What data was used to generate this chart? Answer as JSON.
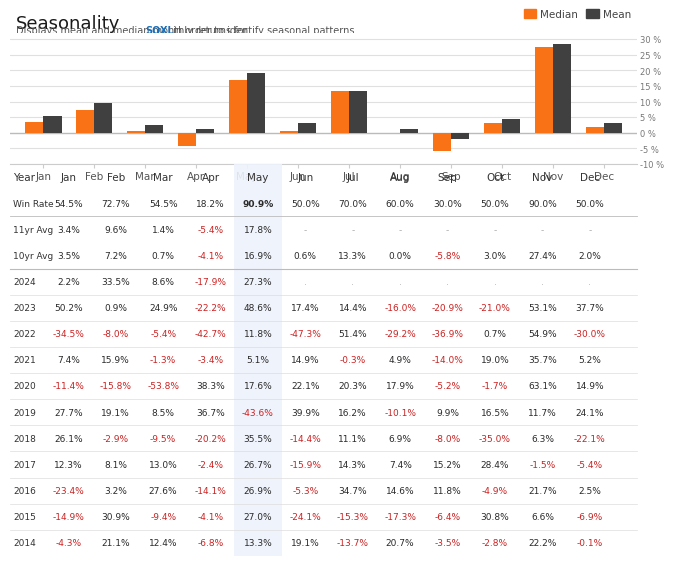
{
  "title": "Seasonality",
  "subtitle_plain": "Displays mean and median monthly returns for ",
  "subtitle_ticker": "SOXL",
  "subtitle_end": " in order to identify seasonal patterns.",
  "months": [
    "Jan",
    "Feb",
    "Mar",
    "Apr",
    "May",
    "Jun",
    "Jul",
    "Aug",
    "Sep",
    "Oct",
    "Nov",
    "Dec"
  ],
  "median": [
    3.5,
    7.2,
    0.7,
    -4.1,
    16.9,
    0.6,
    13.3,
    0.0,
    -5.8,
    3.0,
    27.4,
    2.0
  ],
  "mean": [
    5.5,
    9.6,
    2.5,
    1.2,
    19.0,
    3.0,
    13.5,
    1.2,
    -2.0,
    4.5,
    28.5,
    3.0
  ],
  "median_color": "#f97316",
  "mean_color": "#404040",
  "background_color": "#ffffff",
  "grid_color": "#e0e0e0",
  "ylim": [
    -10,
    32
  ],
  "yticks": [
    -10,
    -5,
    0,
    5,
    10,
    15,
    20,
    25,
    30
  ],
  "table_row_labels": [
    "Year",
    "Win Rate",
    "11yr Avg",
    "10yr Avg",
    "2024",
    "2023",
    "2022",
    "2021",
    "2020",
    "2019",
    "2018",
    "2017",
    "2016",
    "2015",
    "2014"
  ],
  "table_col_labels": [
    "Jan",
    "Feb",
    "Mar",
    "Apr",
    "May",
    "Jun",
    "Jul",
    "Aug",
    "Sep",
    "Oct",
    "Nov",
    "Dec"
  ],
  "table_data": [
    [
      "54.5%",
      "72.7%",
      "54.5%",
      "18.2%",
      "90.9%",
      "50.0%",
      "70.0%",
      "60.0%",
      "30.0%",
      "50.0%",
      "90.0%",
      "50.0%"
    ],
    [
      "3.4%",
      "9.6%",
      "1.4%",
      "-5.4%",
      "17.8%",
      "-",
      "-",
      "-",
      "-",
      "-",
      "-",
      "-"
    ],
    [
      "3.5%",
      "7.2%",
      "0.7%",
      "-4.1%",
      "16.9%",
      "0.6%",
      "13.3%",
      "0.0%",
      "-5.8%",
      "3.0%",
      "27.4%",
      "2.0%"
    ],
    [
      "2.2%",
      "33.5%",
      "8.6%",
      "-17.9%",
      "27.3%",
      ".",
      ".",
      ".",
      ".",
      ".",
      ".",
      "."
    ],
    [
      "50.2%",
      "0.9%",
      "24.9%",
      "-22.2%",
      "48.6%",
      "17.4%",
      "14.4%",
      "-16.0%",
      "-20.9%",
      "-21.0%",
      "53.1%",
      "37.7%"
    ],
    [
      "-34.5%",
      "-8.0%",
      "-5.4%",
      "-42.7%",
      "11.8%",
      "-47.3%",
      "51.4%",
      "-29.2%",
      "-36.9%",
      "0.7%",
      "54.9%",
      "-30.0%"
    ],
    [
      "7.4%",
      "15.9%",
      "-1.3%",
      "-3.4%",
      "5.1%",
      "14.9%",
      "-0.3%",
      "4.9%",
      "-14.0%",
      "19.0%",
      "35.7%",
      "5.2%"
    ],
    [
      "-11.4%",
      "-15.8%",
      "-53.8%",
      "38.3%",
      "17.6%",
      "22.1%",
      "20.3%",
      "17.9%",
      "-5.2%",
      "-1.7%",
      "63.1%",
      "14.9%"
    ],
    [
      "27.7%",
      "19.1%",
      "8.5%",
      "36.7%",
      "-43.6%",
      "39.9%",
      "16.2%",
      "-10.1%",
      "9.9%",
      "16.5%",
      "11.7%",
      "24.1%"
    ],
    [
      "26.1%",
      "-2.9%",
      "-9.5%",
      "-20.2%",
      "35.5%",
      "-14.4%",
      "11.1%",
      "6.9%",
      "-8.0%",
      "-35.0%",
      "6.3%",
      "-22.1%"
    ],
    [
      "12.3%",
      "8.1%",
      "13.0%",
      "-2.4%",
      "26.7%",
      "-15.9%",
      "14.3%",
      "7.4%",
      "15.2%",
      "28.4%",
      "-1.5%",
      "-5.4%"
    ],
    [
      "-23.4%",
      "3.2%",
      "27.6%",
      "-14.1%",
      "26.9%",
      "-5.3%",
      "34.7%",
      "14.6%",
      "11.8%",
      "-4.9%",
      "21.7%",
      "2.5%"
    ],
    [
      "-14.9%",
      "30.9%",
      "-9.4%",
      "-4.1%",
      "27.0%",
      "-24.1%",
      "-15.3%",
      "-17.3%",
      "-6.4%",
      "30.8%",
      "6.6%",
      "-6.9%"
    ],
    [
      "-4.3%",
      "21.1%",
      "12.4%",
      "-6.8%",
      "13.3%",
      "19.1%",
      "-13.7%",
      "20.7%",
      "-3.5%",
      "-2.8%",
      "22.2%",
      "-0.1%"
    ]
  ]
}
